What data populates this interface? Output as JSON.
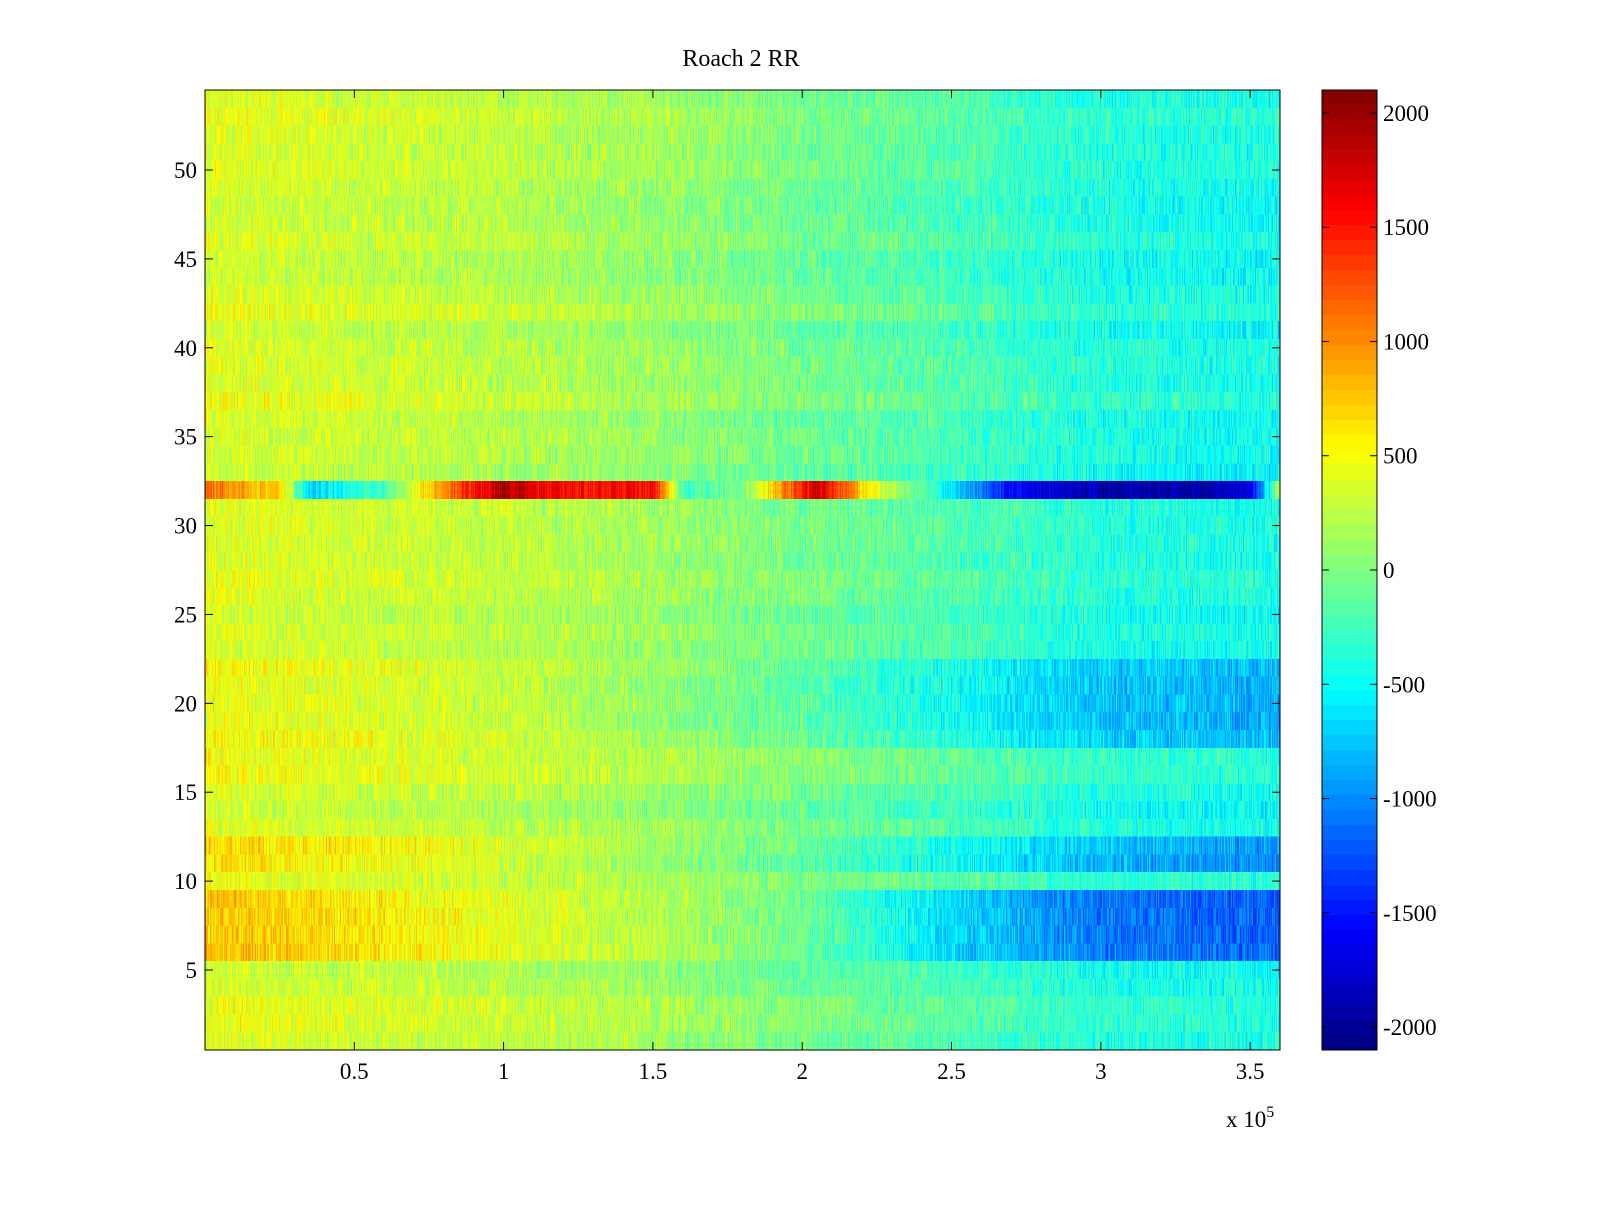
{
  "chart_data": {
    "type": "heatmap",
    "title": "Roach 2 RR",
    "xlabel": "",
    "ylabel": "",
    "x_multiplier_label": "x 10",
    "x_multiplier_exponent": "5",
    "xlim": [
      0,
      3.6
    ],
    "ylim": [
      0.5,
      54.5
    ],
    "rows": 54,
    "columns": 1800,
    "grid": false,
    "colormap": "jet",
    "colorbar": {
      "clim": [
        -2100,
        2100
      ],
      "ticks": [
        2000,
        1500,
        1000,
        500,
        0,
        -500,
        -1000,
        -1500,
        -2000
      ],
      "tick_labels": [
        "2000",
        "1500",
        "1000",
        "500",
        "0",
        "-500",
        "-1000",
        "-1500",
        "-2000"
      ]
    },
    "x_ticks": [
      0.5,
      1,
      1.5,
      2,
      2.5,
      3,
      3.5
    ],
    "x_tick_labels": [
      "0.5",
      "1",
      "1.5",
      "2",
      "2.5",
      "3",
      "3.5"
    ],
    "y_ticks": [
      5,
      10,
      15,
      20,
      25,
      30,
      35,
      40,
      45,
      50
    ],
    "y_tick_labels": [
      "5",
      "10",
      "15",
      "20",
      "25",
      "30",
      "35",
      "40",
      "45",
      "50"
    ],
    "value_profile": {
      "x_knots": [
        0,
        0.5,
        1.0,
        1.5,
        2.0,
        2.5,
        3.0,
        3.6
      ],
      "typical_row": [
        400,
        320,
        250,
        120,
        -50,
        -200,
        -400,
        -450
      ],
      "row_6_to_9": [
        750,
        600,
        400,
        200,
        -100,
        -700,
        -1100,
        -1200
      ],
      "row_11_to_12": [
        650,
        500,
        350,
        100,
        -150,
        -500,
        -800,
        -1000
      ],
      "row_18_to_22": [
        550,
        450,
        350,
        150,
        -100,
        -400,
        -700,
        -800
      ],
      "row_32": {
        "x_knots": [
          0,
          0.25,
          0.35,
          0.6,
          0.85,
          1.0,
          1.2,
          1.5,
          1.6,
          1.8,
          2.05,
          2.25,
          2.5,
          2.7,
          3.0,
          3.3,
          3.5,
          3.6
        ],
        "values": [
          1100,
          700,
          -700,
          -200,
          1300,
          1900,
          1500,
          1600,
          -300,
          0,
          1800,
          400,
          -600,
          -1600,
          -1900,
          -1950,
          -1700,
          200
        ]
      }
    }
  }
}
